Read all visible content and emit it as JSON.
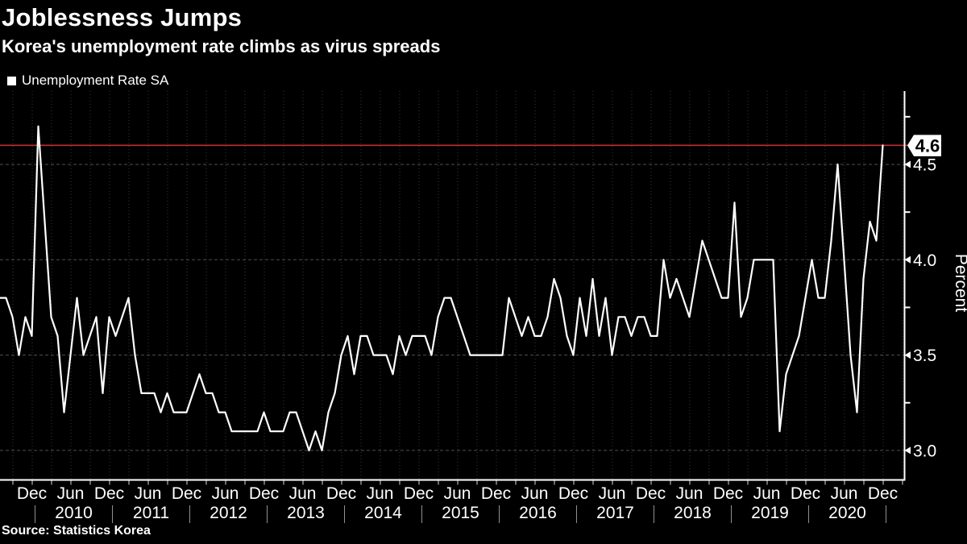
{
  "header": {
    "title": "Joblessness Jumps",
    "subtitle": "Korea's unemployment rate climbs as virus spreads"
  },
  "legend": {
    "marker": "square-swatch",
    "label": "Unemployment Rate SA"
  },
  "footer": {
    "source": "Source: Statistics Korea"
  },
  "colors": {
    "background": "#000000",
    "line": "#ffffff",
    "latest_line": "#bc2f2e",
    "badge_bg": "#ffffff",
    "badge_text": "#000000",
    "axis": "#ffffff",
    "grid_h": "#4f4f4f",
    "grid_v": "#373737",
    "tick": "#d9d9d9",
    "year_divider": "#909090",
    "text": "#ffffff"
  },
  "chart_data": {
    "type": "line",
    "title": "Joblessness Jumps",
    "subtitle": "Korea's unemployment rate climbs as virus spreads",
    "ylabel": "Percent",
    "ylim": [
      2.85,
      4.88
    ],
    "grid": true,
    "legend_position": "top-left",
    "y_ticks": [
      4.5,
      4.0,
      3.5,
      3.0
    ],
    "y_minor_ticks": [
      4.75,
      4.25,
      3.75,
      3.25
    ],
    "latest_value": 4.6,
    "latest_value_label": "4.6",
    "x_start": "2009-07",
    "x_end": "2020-12",
    "frequency": "monthly",
    "x_month_labels": [
      "Dec",
      "Jun",
      "Dec",
      "Jun",
      "Dec",
      "Jun",
      "Dec",
      "Jun",
      "Dec",
      "Jun",
      "Dec",
      "Jun",
      "Dec",
      "Jun",
      "Dec",
      "Jun",
      "Dec",
      "Jun",
      "Dec",
      "Jun",
      "Dec",
      "Jun",
      "Dec"
    ],
    "x_year_labels": [
      "2010",
      "2011",
      "2012",
      "2013",
      "2014",
      "2015",
      "2016",
      "2017",
      "2018",
      "2019",
      "2020"
    ],
    "series": [
      {
        "name": "Unemployment Rate SA",
        "color": "#ffffff",
        "values": [
          3.8,
          3.8,
          3.7,
          3.5,
          3.7,
          3.6,
          4.7,
          4.2,
          3.7,
          3.6,
          3.2,
          3.5,
          3.8,
          3.5,
          3.6,
          3.7,
          3.3,
          3.7,
          3.6,
          3.7,
          3.8,
          3.5,
          3.3,
          3.3,
          3.3,
          3.2,
          3.3,
          3.2,
          3.2,
          3.2,
          3.3,
          3.4,
          3.3,
          3.3,
          3.2,
          3.2,
          3.1,
          3.1,
          3.1,
          3.1,
          3.1,
          3.2,
          3.1,
          3.1,
          3.1,
          3.2,
          3.2,
          3.1,
          3.0,
          3.1,
          3.0,
          3.2,
          3.3,
          3.5,
          3.6,
          3.4,
          3.6,
          3.6,
          3.5,
          3.5,
          3.5,
          3.4,
          3.6,
          3.5,
          3.6,
          3.6,
          3.6,
          3.5,
          3.7,
          3.8,
          3.8,
          3.7,
          3.6,
          3.5,
          3.5,
          3.5,
          3.5,
          3.5,
          3.5,
          3.8,
          3.7,
          3.6,
          3.7,
          3.6,
          3.6,
          3.7,
          3.9,
          3.8,
          3.6,
          3.5,
          3.8,
          3.6,
          3.9,
          3.6,
          3.8,
          3.5,
          3.7,
          3.7,
          3.6,
          3.7,
          3.7,
          3.6,
          3.6,
          4.0,
          3.8,
          3.9,
          3.8,
          3.7,
          3.9,
          4.1,
          4.0,
          3.9,
          3.8,
          3.8,
          4.3,
          3.7,
          3.8,
          4.0,
          4.0,
          4.0,
          4.0,
          3.1,
          3.4,
          3.5,
          3.6,
          3.8,
          4.0,
          3.8,
          3.8,
          4.1,
          4.5,
          4.0,
          3.5,
          3.2,
          3.9,
          4.2,
          4.1,
          4.6
        ]
      }
    ]
  }
}
